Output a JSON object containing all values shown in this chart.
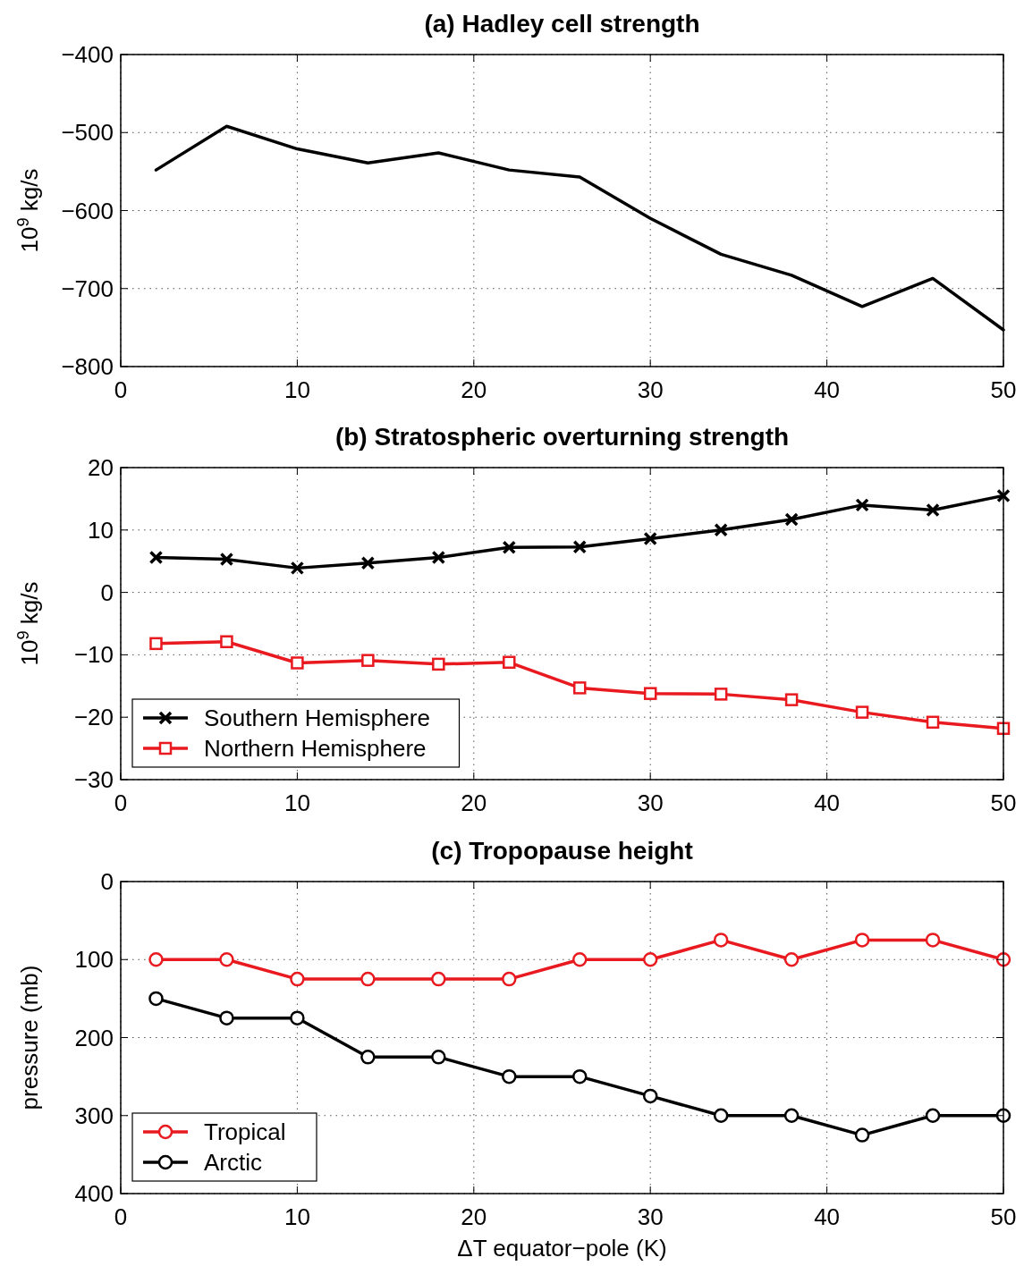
{
  "chart_data": [
    {
      "type": "line",
      "title": "(a) Hadley cell strength",
      "ylabel": "10$^{9}$ kg/s",
      "x": [
        2,
        6,
        10,
        14,
        18,
        22,
        26,
        30,
        34,
        38,
        42,
        46,
        50
      ],
      "series": [
        {
          "color": "#000000",
          "values": [
            -548,
            -492,
            -521,
            -539,
            -526,
            -548,
            -557,
            -610,
            -656,
            -683,
            -723,
            -687,
            -753
          ]
        }
      ],
      "xlim": [
        0,
        50
      ],
      "xticks": [
        0,
        10,
        20,
        30,
        40,
        50
      ],
      "ylim": [
        -800,
        -400
      ],
      "yticks": [
        -800,
        -700,
        -600,
        -500,
        -400
      ],
      "grid": true,
      "legend": false
    },
    {
      "type": "line",
      "title": "(b) Stratospheric overturning strength",
      "ylabel": "10$^{9}$ kg/s",
      "x": [
        2,
        6,
        10,
        14,
        18,
        22,
        26,
        30,
        34,
        38,
        42,
        46,
        50
      ],
      "series": [
        {
          "name": "Southern Hemisphere",
          "color": "#000000",
          "marker": "cross",
          "values": [
            5.6,
            5.3,
            3.9,
            4.7,
            5.6,
            7.2,
            7.3,
            8.6,
            10,
            11.7,
            14,
            13.2,
            15.5
          ]
        },
        {
          "name": "Northern Hemisphere",
          "color": "#e8191f",
          "marker": "square",
          "values": [
            -8.2,
            -7.9,
            -11.3,
            -10.9,
            -11.5,
            -11.2,
            -15.3,
            -16.2,
            -16.3,
            -17.2,
            -19.2,
            -20.8,
            -21.8
          ]
        }
      ],
      "xlim": [
        0,
        50
      ],
      "xticks": [
        0,
        10,
        20,
        30,
        40,
        50
      ],
      "ylim": [
        -30,
        20
      ],
      "yticks": [
        -30,
        -20,
        -10,
        0,
        10,
        20
      ],
      "grid": true,
      "legend": "bottom left"
    },
    {
      "type": "line",
      "title": "(c) Tropopause height",
      "xlabel": "ΔT equator−pole (K)",
      "ylabel": "pressure (mb)",
      "x": [
        2,
        6,
        10,
        14,
        18,
        22,
        26,
        30,
        34,
        38,
        42,
        46,
        50
      ],
      "series": [
        {
          "name": "Tropical",
          "color": "#e8191f",
          "marker": "circle",
          "values": [
            100,
            100,
            125,
            125,
            125,
            125,
            100,
            100,
            75,
            100,
            75,
            75,
            100
          ]
        },
        {
          "name": "Arctic",
          "color": "#000000",
          "marker": "circle",
          "values": [
            150,
            175,
            175,
            225,
            225,
            250,
            250,
            275,
            300,
            300,
            325,
            300,
            300
          ]
        }
      ],
      "xlim": [
        0,
        50
      ],
      "xticks": [
        0,
        10,
        20,
        30,
        40,
        50
      ],
      "ylim": [
        400,
        0
      ],
      "yticks": [
        0,
        100,
        200,
        300,
        400
      ],
      "grid": true,
      "legend": "bottom left"
    }
  ]
}
